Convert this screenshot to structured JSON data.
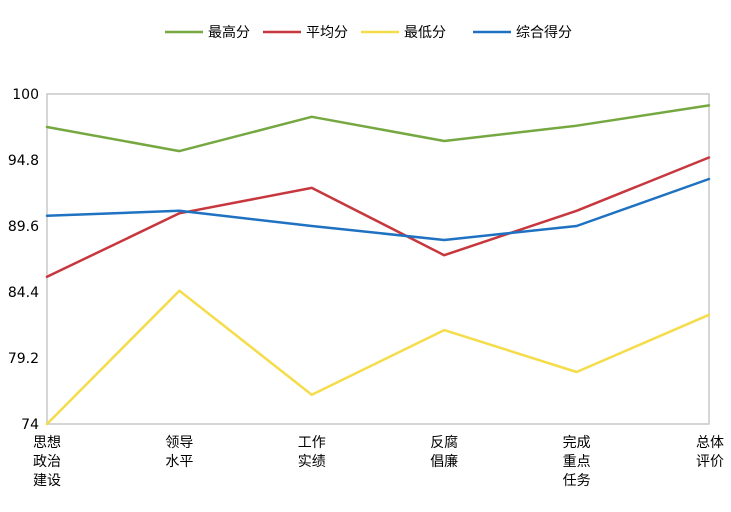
{
  "chart_data": {
    "type": "line",
    "title": "",
    "xlabel": "",
    "ylabel": "",
    "ylim": [
      74,
      100
    ],
    "yticks": [
      "100",
      "94.8",
      "89.6",
      "84.4",
      "79.2",
      "74"
    ],
    "ytick_values": [
      100,
      94.8,
      89.6,
      84.4,
      79.2,
      74
    ],
    "categories": [
      [
        "思想",
        "政治",
        "建设"
      ],
      [
        "领导",
        "水平"
      ],
      [
        "工作",
        "实绩"
      ],
      [
        "反腐",
        "倡廉"
      ],
      [
        "完成",
        "重点",
        "任务"
      ],
      [
        "总体",
        "评价"
      ]
    ],
    "grid": false,
    "legend_position": "top",
    "series": [
      {
        "name": "最高分",
        "color": "#76a842",
        "values": [
          97.4,
          95.5,
          98.2,
          96.3,
          97.5,
          99.1
        ]
      },
      {
        "name": "平均分",
        "color": "#c7373e",
        "values": [
          85.6,
          90.6,
          92.6,
          87.3,
          90.8,
          95.0
        ]
      },
      {
        "name": "最低分",
        "color": "#f5dc4a",
        "values": [
          74.0,
          84.5,
          76.3,
          81.4,
          78.1,
          82.6
        ]
      },
      {
        "name": "综合得分",
        "color": "#1f72c1",
        "values": [
          90.4,
          90.8,
          89.6,
          88.5,
          89.6,
          93.3
        ]
      }
    ]
  }
}
